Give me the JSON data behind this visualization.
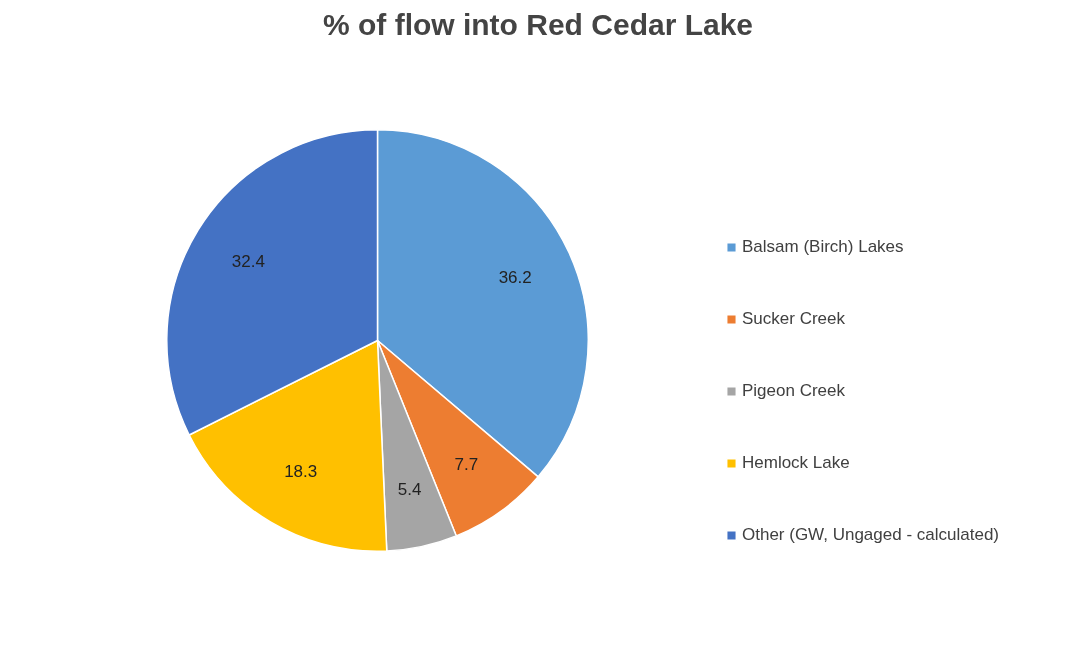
{
  "chart_data": {
    "type": "pie",
    "title": "% of flow into Red Cedar Lake",
    "categories": [
      "Balsam (Birch) Lakes",
      "Sucker Creek",
      "Pigeon Creek",
      "Hemlock Lake",
      "Other (GW, Ungaged - calculated)"
    ],
    "values": [
      36.2,
      7.7,
      5.4,
      18.3,
      32.4
    ],
    "colors": [
      "#5b9bd5",
      "#ed7d31",
      "#a5a5a5",
      "#ffc000",
      "#4472c4"
    ],
    "data_labels": true,
    "legend": "right"
  }
}
